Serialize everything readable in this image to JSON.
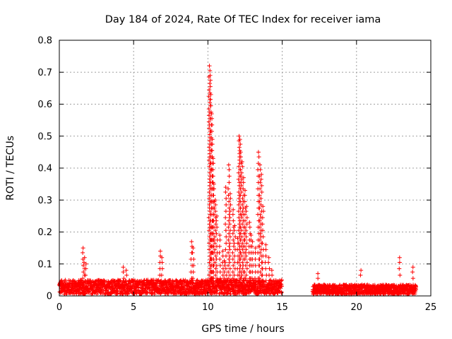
{
  "chart_data": {
    "type": "scatter",
    "title": "Day 184 of 2024, Rate Of TEC Index for receiver iama",
    "xlabel": "GPS time / hours",
    "ylabel": "ROTI / TECUs",
    "xlim": [
      0,
      25
    ],
    "ylim": [
      0,
      0.8
    ],
    "xticks": [
      "0",
      "5",
      "10",
      "15",
      "20",
      "25"
    ],
    "yticks": [
      "0",
      "0.1",
      "0.2",
      "0.3",
      "0.4",
      "0.5",
      "0.6",
      "0.7",
      "0.8"
    ],
    "grid": true,
    "marker": "+",
    "color": "#ff0000",
    "series": [
      {
        "x": [
          1.6,
          1.7,
          1.8,
          4.3,
          4.5,
          6.8,
          6.9,
          8.9,
          9.0,
          10.1,
          10.15,
          10.2,
          10.25,
          10.3,
          10.35,
          10.4,
          10.5,
          10.6,
          10.8,
          11.0,
          11.1,
          11.2,
          11.4,
          11.5,
          11.7,
          11.8,
          12.0,
          12.1,
          12.15,
          12.2,
          12.3,
          12.4,
          12.5,
          12.6,
          12.8,
          12.9,
          13.0,
          13.2,
          13.4,
          13.5,
          13.6,
          13.7,
          13.9,
          14.1,
          14.3,
          17.4,
          20.3,
          22.9,
          23.8
        ],
        "y": [
          0.15,
          0.12,
          0.1,
          0.09,
          0.08,
          0.14,
          0.12,
          0.17,
          0.15,
          0.72,
          0.69,
          0.63,
          0.57,
          0.49,
          0.43,
          0.35,
          0.3,
          0.25,
          0.19,
          0.14,
          0.11,
          0.34,
          0.41,
          0.32,
          0.27,
          0.22,
          0.18,
          0.5,
          0.49,
          0.45,
          0.42,
          0.37,
          0.33,
          0.28,
          0.23,
          0.19,
          0.17,
          0.15,
          0.45,
          0.41,
          0.38,
          0.28,
          0.16,
          0.12,
          0.08,
          0.07,
          0.08,
          0.12,
          0.09
        ]
      }
    ],
    "bands": [
      {
        "from": 0.0,
        "to": 14.95,
        "floor": 0.0,
        "base": 0.045
      },
      {
        "from": 17.05,
        "to": 24.0,
        "floor": 0.0,
        "base": 0.03
      }
    ]
  }
}
